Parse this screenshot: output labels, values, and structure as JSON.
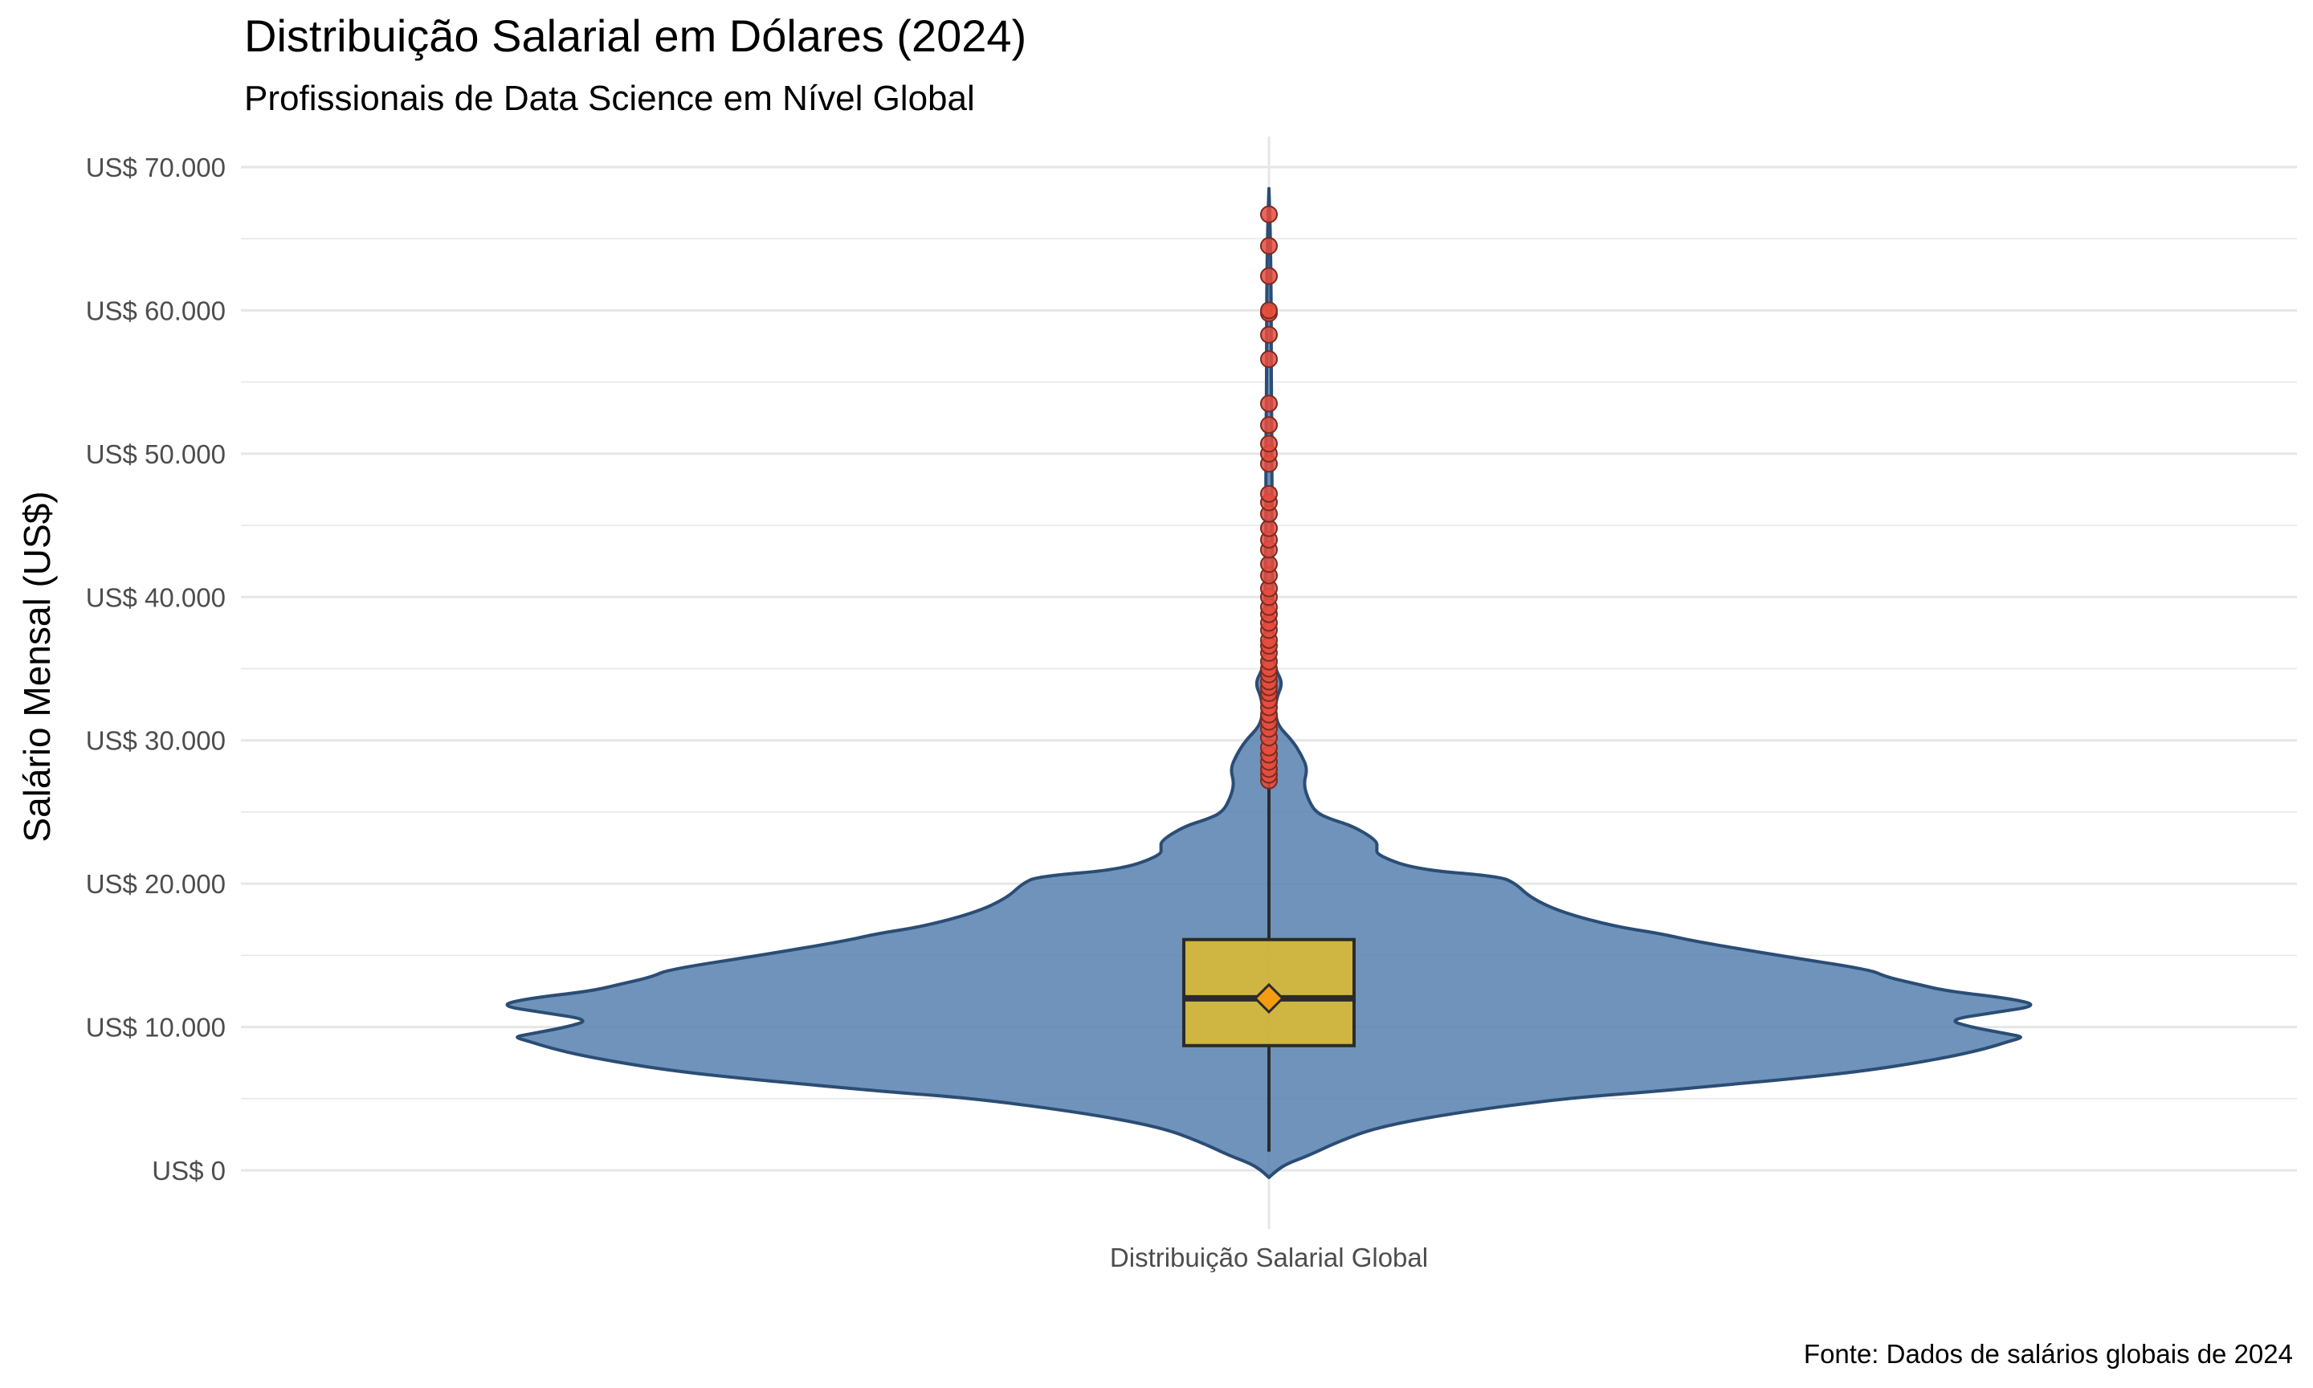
{
  "colors": {
    "violin_fill": "#5b84b1",
    "violin_stroke": "#2b4d75",
    "box_fill": "#d4b63b",
    "box_stroke": "#2b2b2b",
    "mean_marker": "#f39c12",
    "outlier_fill": "#e74c3c",
    "outlier_stroke": "#7a2a22",
    "grid": "#e6e6e6",
    "text": "#000000",
    "tick_text": "#4d4d4d"
  },
  "chart_data": {
    "type": "violin",
    "title": "Distribuição Salarial em Dólares (2024)",
    "subtitle": "Profissionais de Data Science em Nível Global",
    "xlabel": "",
    "ylabel": "Salário Mensal (US$)",
    "caption": "Fonte: Dados de salários globais de 2024",
    "categories": [
      "Distribuição Salarial Global"
    ],
    "ylim": [
      -2000,
      72000
    ],
    "yticks": [
      0,
      10000,
      20000,
      30000,
      40000,
      50000,
      60000,
      70000
    ],
    "ytick_labels": [
      "US$ 0",
      "US$ 10.000",
      "US$ 20.000",
      "US$ 30.000",
      "US$ 40.000",
      "US$ 50.000",
      "US$ 60.000",
      "US$ 70.000"
    ],
    "grid": true,
    "legend": "none",
    "box": {
      "q1": 8700,
      "median": 12000,
      "q3": 16100,
      "whisker_low": 1300,
      "whisker_high": 27000,
      "mean": 12000
    },
    "density_profile": {
      "note": "relative half-width of violin (0-1) at each salary value",
      "y": [
        -500,
        0,
        500,
        1000,
        2000,
        3000,
        4000,
        5000,
        5500,
        6000,
        6500,
        7000,
        7500,
        8000,
        8500,
        9000,
        9300,
        9500,
        10000,
        10500,
        11000,
        11500,
        12000,
        12500,
        13000,
        13500,
        14000,
        15000,
        16000,
        16500,
        17000,
        18000,
        19000,
        20000,
        20500,
        21000,
        22000,
        22500,
        23000,
        24000,
        24500,
        25000,
        26000,
        27000,
        28000,
        29000,
        30000,
        31000,
        32000,
        33000,
        34000,
        35000,
        36000,
        38000,
        40000,
        45000,
        50000,
        55000,
        60000,
        65000,
        68500
      ],
      "w": [
        0.0,
        0.01,
        0.025,
        0.05,
        0.09,
        0.14,
        0.24,
        0.38,
        0.5,
        0.6,
        0.7,
        0.78,
        0.84,
        0.89,
        0.93,
        0.96,
        0.98,
        0.96,
        0.91,
        0.88,
        0.94,
        1.0,
        0.96,
        0.88,
        0.84,
        0.8,
        0.78,
        0.66,
        0.55,
        0.51,
        0.45,
        0.38,
        0.34,
        0.32,
        0.3,
        0.19,
        0.14,
        0.14,
        0.14,
        0.11,
        0.08,
        0.06,
        0.05,
        0.045,
        0.05,
        0.042,
        0.03,
        0.012,
        0.008,
        0.01,
        0.018,
        0.008,
        0.006,
        0.005,
        0.005,
        0.004,
        0.004,
        0.003,
        0.003,
        0.002,
        0.0
      ]
    },
    "outliers": [
      27200,
      27600,
      28000,
      28500,
      29000,
      29500,
      30200,
      30800,
      31300,
      31800,
      32300,
      32800,
      33300,
      33700,
      34100,
      34600,
      35000,
      35500,
      36100,
      36600,
      37000,
      37700,
      38200,
      38800,
      39300,
      40000,
      40600,
      41500,
      42300,
      43300,
      44000,
      44800,
      45800,
      46600,
      47200,
      49300,
      50000,
      50700,
      52000,
      53500,
      56600,
      58300,
      59800,
      60000,
      62400,
      64500,
      66700
    ]
  }
}
